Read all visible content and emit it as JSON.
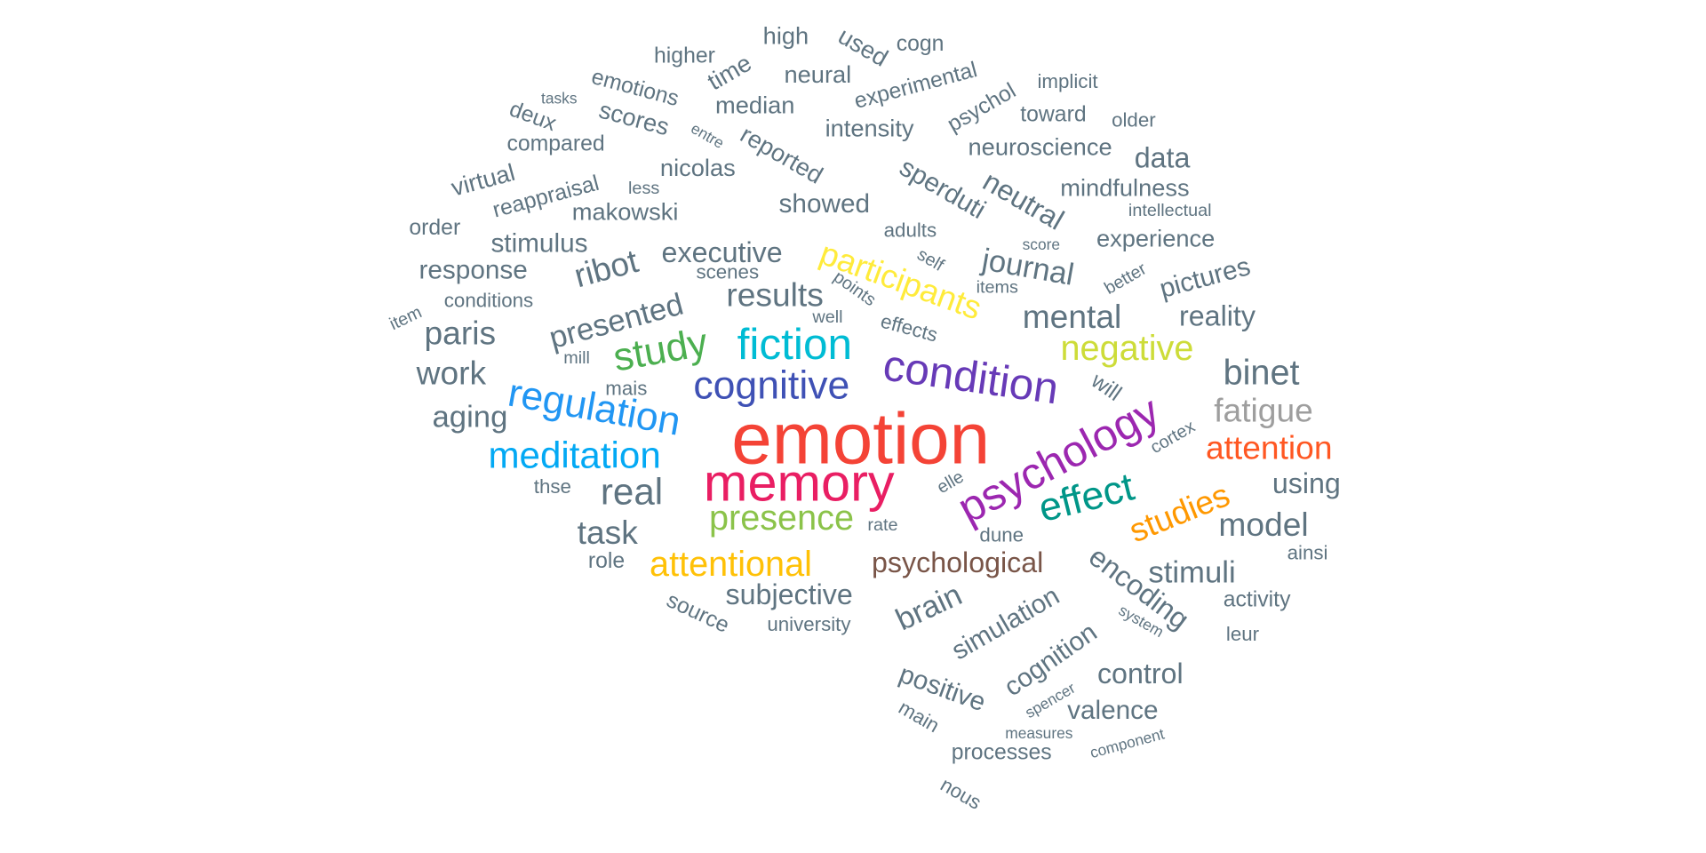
{
  "colors": {
    "default": "#5f7481",
    "red": "#f44336",
    "pink": "#e91e63",
    "purple": "#9c27b0",
    "deep_purple": "#673ab7",
    "indigo": "#3f51b5",
    "blue": "#2196f3",
    "light_blue": "#03a9f4",
    "cyan": "#00bcd4",
    "teal": "#009688",
    "green": "#4caf50",
    "light_green": "#8bc34a",
    "lime": "#cddc39",
    "yellow": "#ffeb3b",
    "amber": "#ffc107",
    "orange": "#ff9800",
    "deep_orange": "#ff5722",
    "brown": "#795548",
    "grey": "#9e9e9e"
  },
  "words": [
    {
      "text": "emotion",
      "color": "#f44336"
    },
    {
      "text": "memory",
      "color": "#e91e63"
    },
    {
      "text": "psychology",
      "color": "#9c27b0"
    },
    {
      "text": "condition",
      "color": "#673ab7"
    },
    {
      "text": "cognitive",
      "color": "#3f51b5"
    },
    {
      "text": "regulation",
      "color": "#2196f3"
    },
    {
      "text": "meditation",
      "color": "#03a9f4"
    },
    {
      "text": "fiction",
      "color": "#00bcd4"
    },
    {
      "text": "effect",
      "color": "#009688"
    },
    {
      "text": "study",
      "color": "#4caf50"
    },
    {
      "text": "presence",
      "color": "#8bc34a"
    },
    {
      "text": "negative",
      "color": "#cddc39"
    },
    {
      "text": "participants",
      "color": "#ffeb3b"
    },
    {
      "text": "attentional",
      "color": "#ffc107"
    },
    {
      "text": "studies",
      "color": "#ff9800"
    },
    {
      "text": "attention",
      "color": "#ff5722"
    },
    {
      "text": "psychological",
      "color": "#795548"
    },
    {
      "text": "fatigue",
      "color": "#9e9e9e"
    },
    {
      "text": "binet",
      "color": "#5f7481"
    },
    {
      "text": "real",
      "color": "#5f7481"
    },
    {
      "text": "model",
      "color": "#5f7481"
    },
    {
      "text": "mental",
      "color": "#5f7481"
    },
    {
      "text": "results",
      "color": "#5f7481"
    },
    {
      "text": "ribot",
      "color": "#5f7481"
    },
    {
      "text": "paris",
      "color": "#5f7481"
    },
    {
      "text": "work",
      "color": "#5f7481"
    },
    {
      "text": "task",
      "color": "#5f7481"
    },
    {
      "text": "stimuli",
      "color": "#5f7481"
    },
    {
      "text": "brain",
      "color": "#5f7481"
    },
    {
      "text": "encoding",
      "color": "#5f7481"
    },
    {
      "text": "aging",
      "color": "#5f7481"
    },
    {
      "text": "journal",
      "color": "#5f7481"
    },
    {
      "text": "presented",
      "color": "#5f7481"
    },
    {
      "text": "using",
      "color": "#5f7481"
    },
    {
      "text": "reality",
      "color": "#5f7481"
    },
    {
      "text": "executive",
      "color": "#5f7481"
    },
    {
      "text": "subjective",
      "color": "#5f7481"
    },
    {
      "text": "simulation",
      "color": "#5f7481"
    },
    {
      "text": "neutral",
      "color": "#5f7481"
    },
    {
      "text": "pictures",
      "color": "#5f7481"
    },
    {
      "text": "cognition",
      "color": "#5f7481"
    },
    {
      "text": "positive",
      "color": "#5f7481"
    },
    {
      "text": "control",
      "color": "#5f7481"
    },
    {
      "text": "response",
      "color": "#5f7481"
    },
    {
      "text": "stimulus",
      "color": "#5f7481"
    },
    {
      "text": "showed",
      "color": "#5f7481"
    },
    {
      "text": "sperduti",
      "color": "#5f7481"
    },
    {
      "text": "data",
      "color": "#5f7481"
    },
    {
      "text": "experience",
      "color": "#5f7481"
    },
    {
      "text": "valence",
      "color": "#5f7481"
    },
    {
      "text": "reported",
      "color": "#5f7481"
    },
    {
      "text": "mindfulness",
      "color": "#5f7481"
    },
    {
      "text": "virtual",
      "color": "#5f7481"
    },
    {
      "text": "makowski",
      "color": "#5f7481"
    },
    {
      "text": "nicolas",
      "color": "#5f7481"
    },
    {
      "text": "neuroscience",
      "color": "#5f7481"
    },
    {
      "text": "intensity",
      "color": "#5f7481"
    },
    {
      "text": "toward",
      "color": "#5f7481"
    },
    {
      "text": "psychol",
      "color": "#5f7481"
    },
    {
      "text": "experimental",
      "color": "#5f7481"
    },
    {
      "text": "median",
      "color": "#5f7481"
    },
    {
      "text": "neural",
      "color": "#5f7481"
    },
    {
      "text": "time",
      "color": "#5f7481"
    },
    {
      "text": "high",
      "color": "#5f7481"
    },
    {
      "text": "used",
      "color": "#5f7481"
    },
    {
      "text": "cogn",
      "color": "#5f7481"
    },
    {
      "text": "higher",
      "color": "#5f7481"
    },
    {
      "text": "emotions",
      "color": "#5f7481"
    },
    {
      "text": "scores",
      "color": "#5f7481"
    },
    {
      "text": "compared",
      "color": "#5f7481"
    },
    {
      "text": "deux",
      "color": "#5f7481"
    },
    {
      "text": "reappraisal",
      "color": "#5f7481"
    },
    {
      "text": "order",
      "color": "#5f7481"
    },
    {
      "text": "activity",
      "color": "#5f7481"
    },
    {
      "text": "processes",
      "color": "#5f7481"
    },
    {
      "text": "source",
      "color": "#5f7481"
    },
    {
      "text": "role",
      "color": "#5f7481"
    },
    {
      "text": "university",
      "color": "#5f7481"
    },
    {
      "text": "will",
      "color": "#5f7481"
    },
    {
      "text": "main",
      "color": "#5f7481"
    },
    {
      "text": "nous",
      "color": "#5f7481"
    },
    {
      "text": "adults",
      "color": "#5f7481"
    },
    {
      "text": "items",
      "color": "#5f7481"
    },
    {
      "text": "effects",
      "color": "#5f7481"
    },
    {
      "text": "scenes",
      "color": "#5f7481"
    },
    {
      "text": "conditions",
      "color": "#5f7481"
    },
    {
      "text": "well",
      "color": "#5f7481"
    },
    {
      "text": "points",
      "color": "#5f7481"
    },
    {
      "text": "self",
      "color": "#5f7481"
    },
    {
      "text": "score",
      "color": "#5f7481"
    },
    {
      "text": "better",
      "color": "#5f7481"
    },
    {
      "text": "intellectual",
      "color": "#5f7481"
    },
    {
      "text": "older",
      "color": "#5f7481"
    },
    {
      "text": "implicit",
      "color": "#5f7481"
    },
    {
      "text": "tasks",
      "color": "#5f7481"
    },
    {
      "text": "entre",
      "color": "#5f7481"
    },
    {
      "text": "less",
      "color": "#5f7481"
    },
    {
      "text": "item",
      "color": "#5f7481"
    },
    {
      "text": "mill",
      "color": "#5f7481"
    },
    {
      "text": "mais",
      "color": "#5f7481"
    },
    {
      "text": "thse",
      "color": "#5f7481"
    },
    {
      "text": "elle",
      "color": "#5f7481"
    },
    {
      "text": "rate",
      "color": "#5f7481"
    },
    {
      "text": "dune",
      "color": "#5f7481"
    },
    {
      "text": "cortex",
      "color": "#5f7481"
    },
    {
      "text": "ainsi",
      "color": "#5f7481"
    },
    {
      "text": "system",
      "color": "#5f7481"
    },
    {
      "text": "leur",
      "color": "#5f7481"
    },
    {
      "text": "spencer",
      "color": "#5f7481"
    },
    {
      "text": "measures",
      "color": "#5f7481"
    },
    {
      "text": "component",
      "color": "#5f7481"
    }
  ]
}
